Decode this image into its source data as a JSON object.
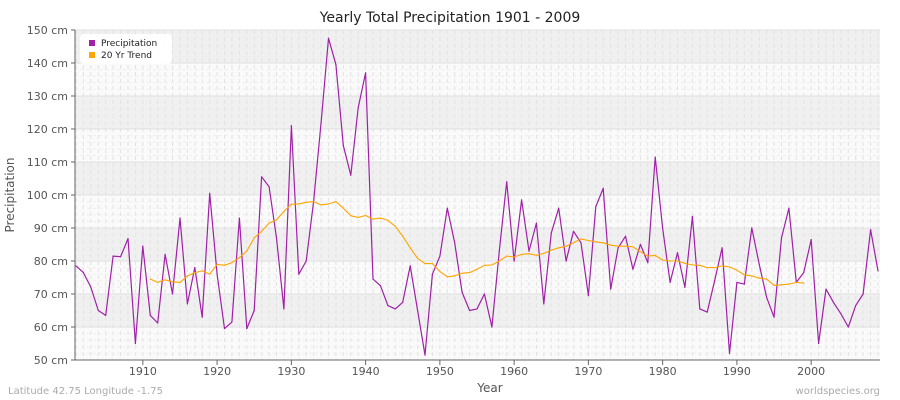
{
  "chart_data": {
    "type": "line",
    "title": "Yearly Total Precipitation 1901 - 2009",
    "xlabel": "Year",
    "ylabel": "Precipitation",
    "xlim": [
      1901,
      2009
    ],
    "ylim": [
      50,
      150
    ],
    "x_ticks": [
      1910,
      1920,
      1930,
      1940,
      1950,
      1960,
      1970,
      1980,
      1990,
      2000
    ],
    "y_ticks": [
      50,
      60,
      70,
      80,
      90,
      100,
      110,
      120,
      130,
      140,
      150
    ],
    "y_tick_labels": [
      "50 cm",
      "60 cm",
      "70 cm",
      "80 cm",
      "90 cm",
      "100 cm",
      "110 cm",
      "120 cm",
      "130 cm",
      "140 cm",
      "150 cm"
    ],
    "grid": true,
    "legend_position": "top-left",
    "series": [
      {
        "name": "Precipitation",
        "color": "#a020a8",
        "start_year": 1901,
        "values": [
          78.5,
          76.5,
          72,
          65,
          63.5,
          81.5,
          81.3,
          86.8,
          55,
          84.5,
          63.5,
          61.2,
          82,
          70,
          93,
          67,
          78,
          63,
          100.5,
          76,
          59.5,
          61.5,
          93,
          59.5,
          65,
          105.5,
          102.5,
          87,
          65.5,
          121,
          76,
          80,
          98,
          122,
          147.5,
          139.5,
          115,
          106,
          126.5,
          137,
          74.5,
          72.5,
          66.5,
          65.5,
          67.5,
          78.5,
          65,
          51.5,
          76,
          81.5,
          96,
          85.5,
          70.5,
          65,
          65.5,
          70,
          60,
          83,
          104,
          80,
          98.5,
          83,
          91.5,
          67,
          88.5,
          96,
          80,
          89,
          85.5,
          69.5,
          96.5,
          102,
          71.5,
          84,
          87.5,
          77.5,
          85,
          79.5,
          111.5,
          90,
          73.5,
          82.5,
          72,
          93.5,
          65.5,
          64.5,
          74,
          84,
          52,
          73.5,
          73,
          90,
          79,
          69,
          63,
          87,
          96,
          73.5,
          76.5,
          86.5,
          55,
          71.5,
          67.5,
          64,
          60,
          66.5,
          70,
          89.5,
          77
        ]
      },
      {
        "name": "20 Yr Trend",
        "color": "#ffa500",
        "start_year": 1911,
        "values": [
          74.5,
          73.5,
          74.3,
          73.7,
          73.5,
          75.5,
          76.5,
          77,
          76,
          79,
          78.7,
          79.5,
          81,
          83,
          87,
          89,
          91.5,
          92.5,
          95,
          97.2,
          97.3,
          97.8,
          98,
          97,
          97.3,
          98,
          96,
          93.7,
          93.2,
          93.8,
          92.7,
          93,
          92.3,
          90.5,
          87.5,
          84,
          80.8,
          79.2,
          79.2,
          76.8,
          75.2,
          75.5,
          76.3,
          76.5,
          77.5,
          78.7,
          78.8,
          80,
          81.5,
          81.2,
          82,
          82.2,
          81.7,
          82.3,
          83.3,
          84,
          84.5,
          85.5,
          86.7,
          86.2,
          85.8,
          85.5,
          84.8,
          84.5,
          84.5,
          84.3,
          82.8,
          81.5,
          81.7,
          80.3,
          80,
          80,
          79.3,
          78.8,
          78.7,
          78,
          78,
          78.5,
          78.2,
          77.2,
          75.8,
          75.5,
          74.8,
          74.5,
          72.6,
          72.8,
          73,
          73.5,
          73.3
        ]
      }
    ]
  },
  "footer": {
    "location": "Latitude 42.75 Longitude -1.75",
    "credit": "worldspecies.org"
  }
}
